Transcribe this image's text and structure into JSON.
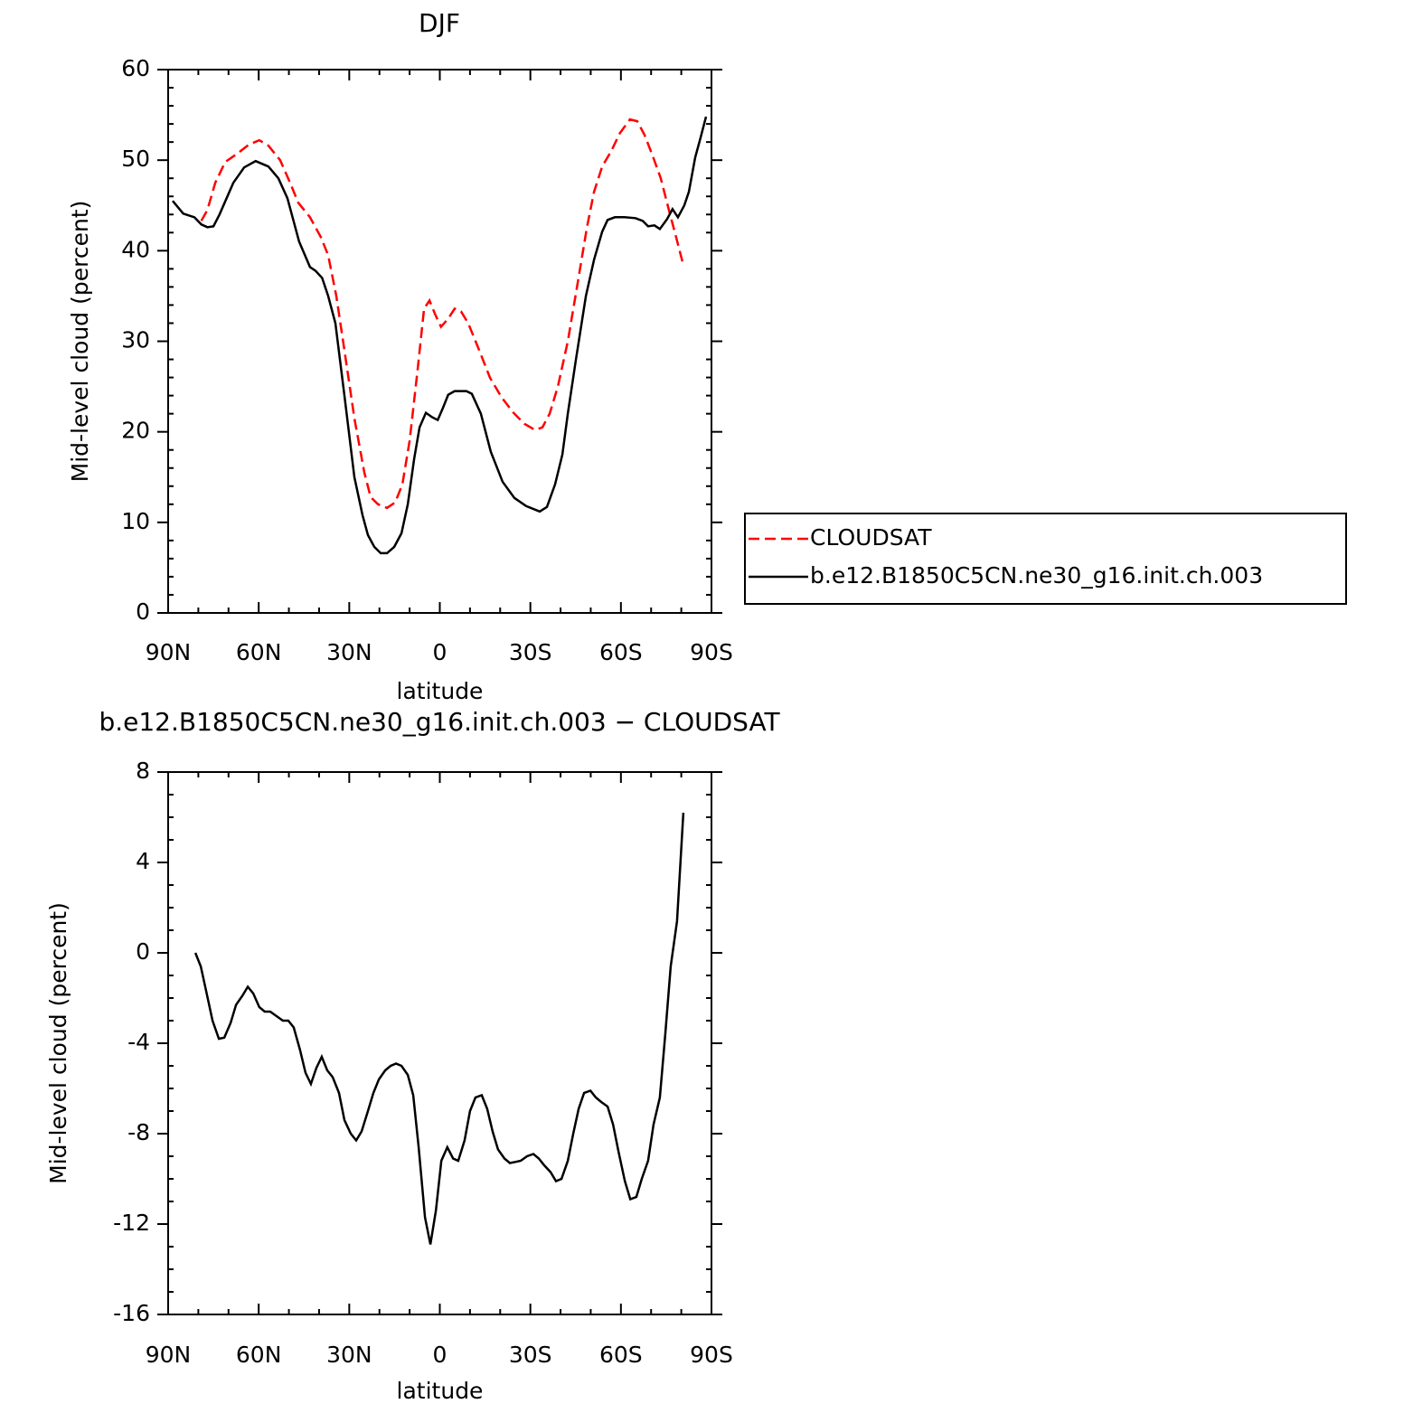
{
  "chart_data": [
    {
      "type": "line",
      "title": "DJF",
      "x_label": "latitude",
      "y_label": "Mid-level cloud (percent)",
      "xlim": [
        90,
        -90
      ],
      "xticks": [
        {
          "value": 90,
          "label": "90N"
        },
        {
          "value": 60,
          "label": "60N"
        },
        {
          "value": 30,
          "label": "30N"
        },
        0,
        {
          "value": -30,
          "label": "30S"
        },
        {
          "value": -60,
          "label": "60S"
        },
        {
          "value": -90,
          "label": "90S"
        }
      ],
      "ylim": [
        0,
        60
      ],
      "yticks": [
        0,
        10,
        20,
        30,
        40,
        50,
        60
      ],
      "legend": "right",
      "series": [
        {
          "name": "CLOUDSAT",
          "color": "#ff0000",
          "line_style": "dashed",
          "x": [
            79,
            77,
            74.4,
            71.1,
            67.2,
            63.3,
            59.8,
            56.8,
            52.9,
            49.6,
            46.9,
            43,
            39.4,
            37,
            34.3,
            31.6,
            28.3,
            25,
            22.9,
            20.5,
            17.5,
            14.8,
            12.4,
            10,
            7.3,
            5.2,
            3.4,
            1.6,
            -0.4,
            -2.8,
            -4.9,
            -7,
            -9.4,
            -12.7,
            -16.6,
            -20.5,
            -24.4,
            -28,
            -31.6,
            -34,
            -36.4,
            -39.1,
            -42.4,
            -45.7,
            -48.7,
            -51.1,
            -53.8,
            -56.8,
            -59.7,
            -63,
            -65.4,
            -67.8,
            -70.5,
            -73.2,
            -75.9,
            -78.3,
            -80.7
          ],
          "values": [
            43.3,
            44.5,
            47.5,
            49.8,
            50.7,
            51.7,
            52.2,
            51.6,
            50,
            47.5,
            45.3,
            43.7,
            41.5,
            39.5,
            35,
            29,
            21.5,
            15.5,
            12.8,
            12,
            11.6,
            12.2,
            14.2,
            19,
            27,
            33.6,
            34.5,
            33,
            31.6,
            32.5,
            33.6,
            33.3,
            32,
            29.3,
            26,
            23.8,
            22.1,
            20.9,
            20.2,
            20.5,
            22,
            25,
            30,
            36.5,
            42.5,
            46.5,
            49.3,
            51,
            53,
            54.5,
            54.3,
            52.8,
            50.5,
            48,
            44.5,
            41.5,
            38.4
          ]
        },
        {
          "name": "b.e12.B1850C5CN.ne30_g16.init.ch.003",
          "color": "#000000",
          "line_style": "solid",
          "x": [
            88.5,
            85,
            81.3,
            79,
            77,
            75,
            73,
            68.4,
            64.8,
            61,
            56.8,
            53.5,
            50.5,
            46.6,
            43,
            41.2,
            39,
            37,
            34.6,
            31.6,
            28.3,
            25.6,
            23.8,
            21.7,
            19.6,
            17.5,
            15.1,
            12.7,
            10.6,
            8.5,
            6.7,
            4.6,
            2.5,
            0.7,
            -1,
            -2.8,
            -4.9,
            -8.8,
            -10.6,
            -13.6,
            -16.9,
            -20.8,
            -24.7,
            -28.6,
            -33.1,
            -35.5,
            -38.2,
            -40.6,
            -42.4,
            -45.1,
            -48.4,
            -51.1,
            -53.8,
            -55.6,
            -58,
            -61.2,
            -64.8,
            -67.2,
            -69,
            -71.1,
            -72.9,
            -75.3,
            -77.1,
            -78.9,
            -81,
            -82.5,
            -84.6,
            -86.4,
            -88.2
          ],
          "values": [
            45.5,
            44.1,
            43.7,
            42.9,
            42.6,
            42.7,
            44,
            47.5,
            49.2,
            49.9,
            49.3,
            48,
            45.8,
            41,
            38.2,
            37.8,
            37,
            35,
            32,
            24,
            15,
            10.8,
            8.6,
            7.3,
            6.6,
            6.6,
            7.3,
            8.8,
            12,
            17,
            20.5,
            22.1,
            21.6,
            21.3,
            22.6,
            24.1,
            24.5,
            24.5,
            24.2,
            22,
            17.8,
            14.5,
            12.7,
            11.8,
            11.2,
            11.7,
            14.2,
            17.5,
            22,
            28,
            35,
            39,
            42.1,
            43.4,
            43.7,
            43.7,
            43.6,
            43.3,
            42.7,
            42.8,
            42.4,
            43.5,
            44.6,
            43.7,
            45,
            46.5,
            50.3,
            52.5,
            54.8
          ]
        }
      ]
    },
    {
      "type": "line",
      "title": "b.e12.B1850C5CN.ne30_g16.init.ch.003 − CLOUDSAT",
      "x_label": "latitude",
      "y_label": "Mid-level cloud (percent)",
      "xlim": [
        90,
        -90
      ],
      "xticks": [
        {
          "value": 90,
          "label": "90N"
        },
        {
          "value": 60,
          "label": "60N"
        },
        {
          "value": 30,
          "label": "30N"
        },
        0,
        {
          "value": -30,
          "label": "30S"
        },
        {
          "value": -60,
          "label": "60S"
        },
        {
          "value": -90,
          "label": "90S"
        }
      ],
      "ylim": [
        -16,
        8
      ],
      "yticks": [
        -16,
        -12,
        -8,
        -4,
        0,
        4,
        8
      ],
      "series": [
        {
          "color": "#000000",
          "line_style": "solid",
          "x": [
            81,
            79.2,
            77.4,
            75.3,
            73.2,
            71.4,
            69.3,
            67.5,
            65.4,
            63.6,
            61.8,
            59.8,
            58,
            56.2,
            54.1,
            52,
            50.2,
            48.4,
            46.3,
            44.5,
            42.7,
            40.9,
            39.1,
            37.3,
            35.5,
            33.4,
            31.6,
            29.5,
            27.7,
            25.9,
            23.8,
            22,
            20.2,
            18.1,
            16.3,
            14.5,
            12.7,
            10.6,
            8.8,
            7,
            4.9,
            3.1,
            1.3,
            -0.5,
            -2.5,
            -4.4,
            -6.1,
            -8.2,
            -10,
            -11.8,
            -13.9,
            -15.7,
            -17.5,
            -19.3,
            -21.4,
            -23.2,
            -25,
            -26.8,
            -28.9,
            -31,
            -32.8,
            -34.6,
            -36.7,
            -38.5,
            -40.3,
            -42.4,
            -44.2,
            -46,
            -47.8,
            -49.9,
            -51.7,
            -53.5,
            -55.6,
            -57.4,
            -59.2,
            -61.3,
            -63.1,
            -65.1,
            -66.9,
            -69,
            -70.8,
            -72.9,
            -74.7,
            -76.5,
            -78.6,
            -80.7
          ],
          "values": [
            0,
            -0.6,
            -1.7,
            -3,
            -3.8,
            -3.75,
            -3.1,
            -2.3,
            -1.9,
            -1.5,
            -1.8,
            -2.4,
            -2.6,
            -2.6,
            -2.8,
            -3,
            -3,
            -3.3,
            -4.3,
            -5.3,
            -5.8,
            -5.1,
            -4.6,
            -5.2,
            -5.5,
            -6.2,
            -7.4,
            -8,
            -8.3,
            -7.9,
            -7,
            -6.2,
            -5.6,
            -5.2,
            -5,
            -4.9,
            -5,
            -5.4,
            -6.3,
            -8.6,
            -11.7,
            -12.9,
            -11.4,
            -9.2,
            -8.6,
            -9.1,
            -9.2,
            -8.3,
            -7,
            -6.4,
            -6.3,
            -6.9,
            -7.9,
            -8.7,
            -9.1,
            -9.3,
            -9.25,
            -9.2,
            -9,
            -8.9,
            -9.1,
            -9.4,
            -9.7,
            -10.1,
            -10,
            -9.2,
            -8,
            -6.9,
            -6.2,
            -6.1,
            -6.4,
            -6.6,
            -6.8,
            -7.6,
            -8.8,
            -10.1,
            -10.9,
            -10.8,
            -10,
            -9.2,
            -7.6,
            -6.4,
            -3.6,
            -0.6,
            1.4,
            6.2
          ]
        }
      ]
    }
  ]
}
